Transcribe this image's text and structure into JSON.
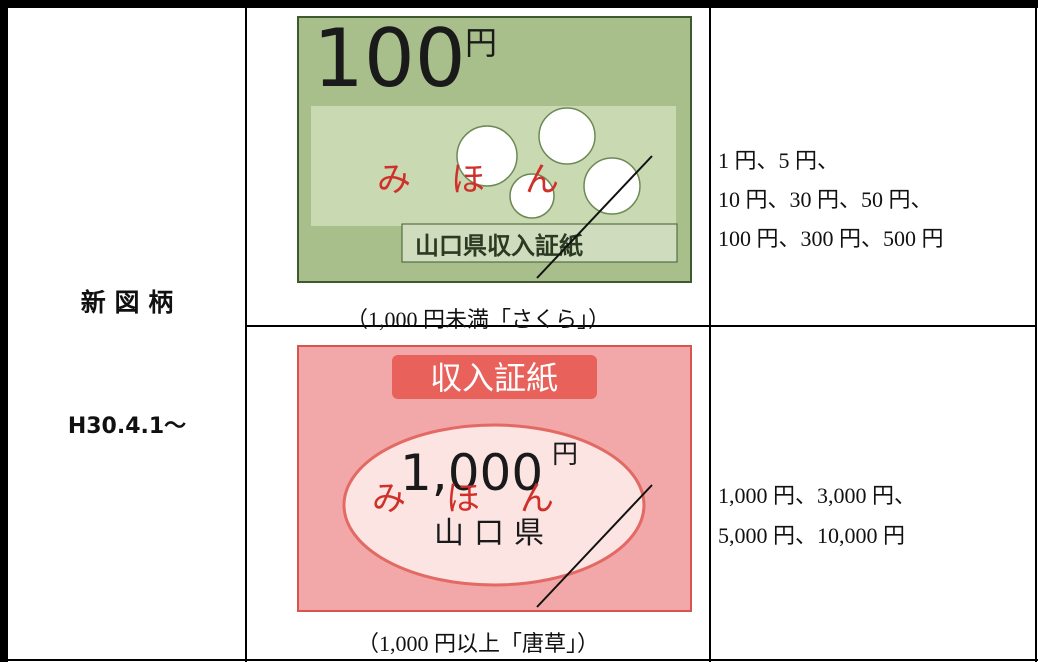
{
  "table": {
    "label_cell": {
      "title": "新 図 柄",
      "date": "H30.4.1〜"
    },
    "rows": [
      {
        "stamp": {
          "value": "100",
          "unit": "円",
          "label": "山口県収入証紙",
          "sample": "みほん"
        },
        "caption": "（1,000 円未満「さくら」）",
        "denominations": [
          "1 円、5 円、",
          "10 円、30 円、50 円、",
          "100 円、300 円、500 円"
        ]
      },
      {
        "stamp": {
          "header": "収入証紙",
          "value": "1,000",
          "unit": "円",
          "label": "山口県",
          "sample": "みほん"
        },
        "caption": "（1,000 円以上「唐草」）",
        "denominations": [
          "1,000 円、3,000 円、",
          "5,000 円、10,000 円"
        ]
      }
    ]
  }
}
